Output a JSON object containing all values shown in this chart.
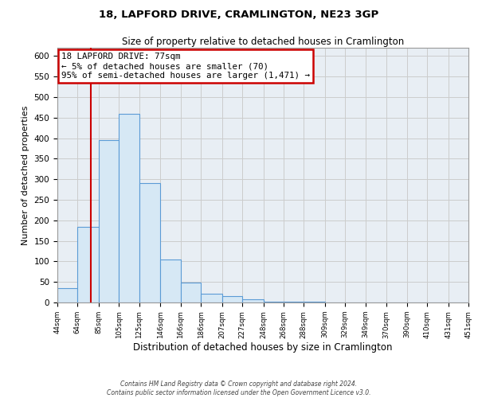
{
  "title": "18, LAPFORD DRIVE, CRAMLINGTON, NE23 3GP",
  "subtitle": "Size of property relative to detached houses in Cramlington",
  "xlabel": "Distribution of detached houses by size in Cramlington",
  "ylabel": "Number of detached properties",
  "bar_left_edges": [
    44,
    64,
    85,
    105,
    125,
    146,
    166,
    186,
    207,
    227,
    248,
    268,
    288,
    309,
    329,
    349,
    370,
    390,
    410,
    431
  ],
  "bar_widths": [
    20,
    21,
    20,
    20,
    21,
    20,
    20,
    21,
    20,
    21,
    20,
    20,
    21,
    20,
    20,
    21,
    20,
    20,
    21,
    20
  ],
  "bar_heights": [
    35,
    185,
    395,
    460,
    290,
    105,
    48,
    22,
    15,
    8,
    2,
    1,
    1,
    0,
    0,
    0,
    0,
    0,
    0,
    0
  ],
  "bar_color": "#d6e8f5",
  "bar_edgecolor": "#5b9bd5",
  "property_line_x": 77,
  "property_line_color": "#cc0000",
  "annotation_text": "18 LAPFORD DRIVE: 77sqm\n← 5% of detached houses are smaller (70)\n95% of semi-detached houses are larger (1,471) →",
  "annotation_box_color": "#ffffff",
  "annotation_box_edgecolor": "#cc0000",
  "xlim": [
    44,
    451
  ],
  "ylim": [
    0,
    620
  ],
  "xtick_labels": [
    "44sqm",
    "64sqm",
    "85sqm",
    "105sqm",
    "125sqm",
    "146sqm",
    "166sqm",
    "186sqm",
    "207sqm",
    "227sqm",
    "248sqm",
    "268sqm",
    "288sqm",
    "309sqm",
    "329sqm",
    "349sqm",
    "370sqm",
    "390sqm",
    "410sqm",
    "431sqm",
    "451sqm"
  ],
  "xtick_positions": [
    44,
    64,
    85,
    105,
    125,
    146,
    166,
    186,
    207,
    227,
    248,
    268,
    288,
    309,
    329,
    349,
    370,
    390,
    410,
    431,
    451
  ],
  "ytick_positions": [
    0,
    50,
    100,
    150,
    200,
    250,
    300,
    350,
    400,
    450,
    500,
    550,
    600
  ],
  "footer_text": "Contains HM Land Registry data © Crown copyright and database right 2024.\nContains public sector information licensed under the Open Government Licence v3.0.",
  "grid_color": "#cccccc",
  "background_color": "#e8eef4"
}
